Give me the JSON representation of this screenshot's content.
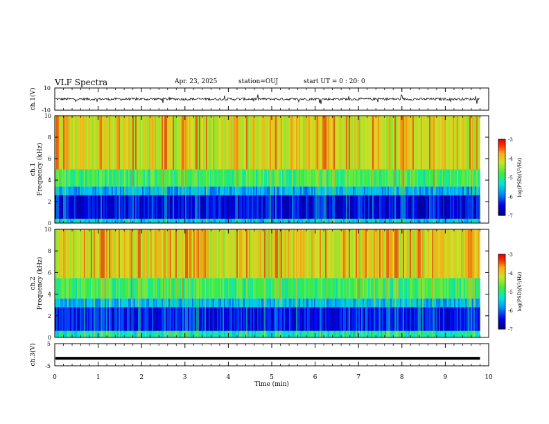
{
  "header": {
    "title": "VLF Spectra",
    "date": "Apr. 23, 2025",
    "station": "station=OUJ",
    "start": "start UT = 0 : 20: 0"
  },
  "chart_data": [
    {
      "type": "line",
      "panel": "ch1-waveform",
      "ylabel": "ch.1(V)",
      "ylim": [
        -10,
        10
      ],
      "yticks": [
        "10",
        "-10"
      ],
      "x_range_min": [
        0,
        9.8
      ],
      "baseline": 0,
      "notes": "noisy waveform around 0 V with spikes up to about +/-5 V"
    },
    {
      "type": "heatmap",
      "panel": "ch1-spectrogram",
      "ylabel": "Frequency (kHz)",
      "channel_label": "ch.1",
      "ylim": [
        0,
        10
      ],
      "yticks": [
        "0",
        "2",
        "4",
        "6",
        "8",
        "10"
      ],
      "x_range_min": [
        0,
        9.8
      ],
      "colorbar": {
        "label": "log(PSD)(V²/Hz)",
        "range": [
          -7,
          -3
        ],
        "ticks": [
          "-3",
          "-4",
          "-5",
          "-6",
          "-7"
        ]
      },
      "bands": [
        {
          "from_khz": 0,
          "to_khz": 0.4,
          "level": -5.5
        },
        {
          "from_khz": 0.4,
          "to_khz": 2.6,
          "level": -6.5
        },
        {
          "from_khz": 2.6,
          "to_khz": 3.4,
          "level": -5.7
        },
        {
          "from_khz": 3.4,
          "to_khz": 5.0,
          "level": -4.9
        },
        {
          "from_khz": 5.0,
          "to_khz": 10,
          "level": -4.1
        }
      ]
    },
    {
      "type": "heatmap",
      "panel": "ch2-spectrogram",
      "ylabel": "Frequency (kHz)",
      "channel_label": "ch.2",
      "ylim": [
        0,
        10
      ],
      "yticks": [
        "0",
        "2",
        "4",
        "6",
        "8",
        "10"
      ],
      "x_range_min": [
        0,
        9.8
      ],
      "colorbar": {
        "label": "log(PSD)(V²/Hz)",
        "range": [
          -7,
          -3
        ],
        "ticks": [
          "-3",
          "-4",
          "-5",
          "-6",
          "-7"
        ]
      },
      "bands": [
        {
          "from_khz": 0,
          "to_khz": 0.6,
          "level": -5.2
        },
        {
          "from_khz": 0.6,
          "to_khz": 2.8,
          "level": -6.4
        },
        {
          "from_khz": 2.8,
          "to_khz": 3.6,
          "level": -5.6
        },
        {
          "from_khz": 3.6,
          "to_khz": 5.5,
          "level": -4.9
        },
        {
          "from_khz": 5.5,
          "to_khz": 10,
          "level": -4.1
        }
      ]
    },
    {
      "type": "line",
      "panel": "ch3-waveform",
      "ylabel": "ch.3(V)",
      "ylim": [
        -5,
        5
      ],
      "yticks": [
        "5",
        "-5"
      ],
      "x_range_min": [
        0,
        9.8
      ],
      "constant_value": -1.6,
      "xlabel": "Time (min)",
      "xticks": [
        "0",
        "1",
        "2",
        "3",
        "4",
        "5",
        "6",
        "7",
        "8",
        "9",
        "10"
      ]
    }
  ]
}
